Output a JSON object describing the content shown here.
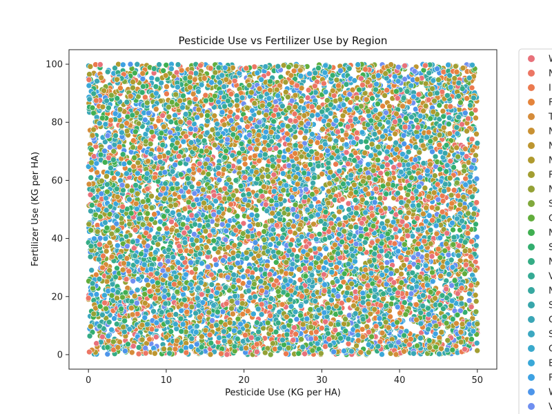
{
  "chart_data": {
    "type": "scatter",
    "title": "Pesticide Use vs Fertilizer Use by Region",
    "xlabel": "Pesticide Use (KG per HA)",
    "ylabel": "Fertilizer Use (KG per HA)",
    "xlim": [
      -2.5,
      52.5
    ],
    "ylim": [
      -5,
      105
    ],
    "xticks": [
      0,
      10,
      20,
      30,
      40,
      50
    ],
    "yticks": [
      0,
      20,
      40,
      60,
      80,
      100
    ],
    "grid": false,
    "legend": {
      "placement": "outside-right",
      "entries": [
        "W",
        "N",
        "I",
        "F",
        "T",
        "N",
        "N",
        "N",
        "F",
        "N",
        "S",
        "C",
        "N",
        "S",
        "N",
        "V",
        "N",
        "S",
        "C",
        "S",
        "C",
        "E",
        "F",
        "W",
        "V"
      ],
      "colors": [
        "#e8717a",
        "#ec7664",
        "#eb7a4f",
        "#e4843b",
        "#d58c3a",
        "#c99133",
        "#bd9630",
        "#b09a2e",
        "#a39e32",
        "#94a136",
        "#81a93c",
        "#62ad3c",
        "#40af51",
        "#33ae6f",
        "#35ac85",
        "#36aa94",
        "#37a8a0",
        "#38a6ab",
        "#3aa6b6",
        "#3ca8c1",
        "#3aa9cc",
        "#3aa8d8",
        "#3ea2e3",
        "#4d95ea",
        "#6f8ff0"
      ]
    },
    "series_note_count": 25,
    "point_sample": {
      "x_range": [
        0,
        50
      ],
      "y_range": [
        0,
        100
      ],
      "approx_points": 9000,
      "distribution": "uniform"
    }
  }
}
